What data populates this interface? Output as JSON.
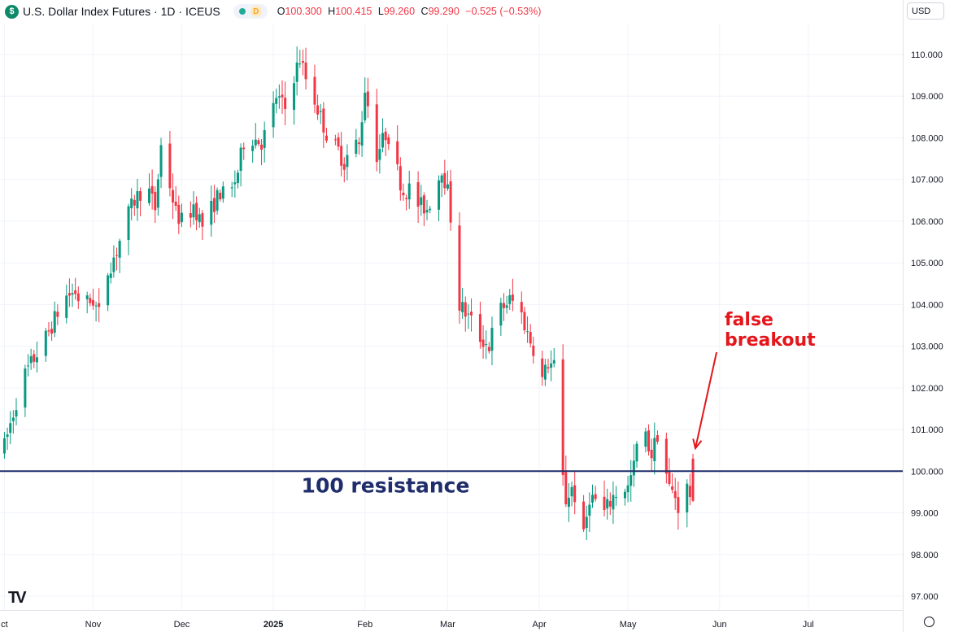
{
  "header": {
    "logo_letter": "$",
    "title": "U.S. Dollar Index Futures · 1D · ICEUS",
    "d_badge": "D",
    "ohlc": [
      {
        "k": "O",
        "v": "100.300"
      },
      {
        "k": "H",
        "v": "100.415"
      },
      {
        "k": "L",
        "v": "99.260"
      },
      {
        "k": "C",
        "v": "99.290"
      },
      {
        "k": "",
        "v": "−0.525 (−0.53%)"
      }
    ]
  },
  "currency_button": {
    "label": "USD",
    "icon": "chevron-down-icon"
  },
  "tv_logo": "TV",
  "colors": {
    "up": "#089981",
    "down": "#f23645",
    "resistance": "#1f2d6b",
    "annotation": "#e3161b",
    "grid": "#f0f3fa"
  },
  "chart_data": {
    "type": "candlestick",
    "ylim": [
      96.8,
      110.6
    ],
    "y_ticks": [
      "97.000",
      "98.000",
      "99.000",
      "100.000",
      "101.000",
      "102.000",
      "103.000",
      "104.000",
      "105.000",
      "106.000",
      "107.000",
      "108.000",
      "109.000",
      "110.000"
    ],
    "y_tick_values": [
      97,
      98,
      99,
      100,
      101,
      102,
      103,
      104,
      105,
      106,
      107,
      108,
      109,
      110
    ],
    "x_labels": [
      {
        "label": "ct",
        "day": 0,
        "bold": false
      },
      {
        "label": "Nov",
        "day": 30,
        "bold": false
      },
      {
        "label": "Dec",
        "day": 60,
        "bold": false
      },
      {
        "label": "2025",
        "day": 91,
        "bold": true
      },
      {
        "label": "Feb",
        "day": 122,
        "bold": false
      },
      {
        "label": "Mar",
        "day": 150,
        "bold": false
      },
      {
        "label": "Apr",
        "day": 181,
        "bold": false
      },
      {
        "label": "May",
        "day": 211,
        "bold": false
      },
      {
        "label": "Jun",
        "day": 242,
        "bold": false
      },
      {
        "label": "Jul",
        "day": 272,
        "bold": false
      }
    ],
    "x_range_days": [
      -1.5,
      304
    ],
    "trend_points": [
      [
        0,
        100.6
      ],
      [
        3,
        101.4
      ],
      [
        6,
        102.2
      ],
      [
        10,
        102.7
      ],
      [
        14,
        103.2
      ],
      [
        18,
        103.8
      ],
      [
        21,
        104.2
      ],
      [
        24,
        104.3
      ],
      [
        26,
        104.0
      ],
      [
        30,
        104.1
      ],
      [
        33,
        103.6
      ],
      [
        35,
        104.8
      ],
      [
        38,
        105.3
      ],
      [
        41,
        106.0
      ],
      [
        44,
        106.5
      ],
      [
        48,
        106.9
      ],
      [
        51,
        106.3
      ],
      [
        53,
        107.8
      ],
      [
        55,
        107.2
      ],
      [
        58,
        106.2
      ],
      [
        61,
        105.9
      ],
      [
        64,
        106.4
      ],
      [
        67,
        105.9
      ],
      [
        70,
        106.3
      ],
      [
        73,
        106.7
      ],
      [
        76,
        106.5
      ],
      [
        79,
        107.2
      ],
      [
        81,
        107.9
      ],
      [
        84,
        108.0
      ],
      [
        87,
        107.9
      ],
      [
        90,
        108.4
      ],
      [
        92,
        109.0
      ],
      [
        95,
        108.7
      ],
      [
        98,
        109.5
      ],
      [
        100,
        109.9
      ],
      [
        103,
        109.2
      ],
      [
        105,
        108.9
      ],
      [
        108,
        108.3
      ],
      [
        110,
        107.9
      ],
      [
        113,
        107.7
      ],
      [
        115,
        107.4
      ],
      [
        118,
        107.9
      ],
      [
        120,
        107.8
      ],
      [
        122,
        109.2
      ],
      [
        124,
        108.4
      ],
      [
        126,
        107.6
      ],
      [
        129,
        108.1
      ],
      [
        131,
        108.0
      ],
      [
        133,
        107.2
      ],
      [
        135,
        106.7
      ],
      [
        138,
        106.8
      ],
      [
        140,
        106.4
      ],
      [
        143,
        106.3
      ],
      [
        146,
        106.8
      ],
      [
        148,
        107.3
      ],
      [
        150,
        106.7
      ],
      [
        152,
        105.5
      ],
      [
        154,
        104.0
      ],
      [
        156,
        103.8
      ],
      [
        158,
        103.6
      ],
      [
        161,
        103.2
      ],
      [
        164,
        103.0
      ],
      [
        166,
        103.6
      ],
      [
        168,
        103.9
      ],
      [
        171,
        104.1
      ],
      [
        174,
        104.0
      ],
      [
        177,
        103.3
      ],
      [
        180,
        102.8
      ],
      [
        182,
        102.2
      ],
      [
        184,
        102.6
      ],
      [
        186,
        102.5
      ],
      [
        188,
        100.3
      ],
      [
        190,
        99.3
      ],
      [
        192,
        99.6
      ],
      [
        194,
        99.2
      ],
      [
        196,
        98.4
      ],
      [
        198,
        99.4
      ],
      [
        200,
        99.3
      ],
      [
        203,
        99.0
      ],
      [
        206,
        99.4
      ],
      [
        209,
        99.6
      ],
      [
        211,
        99.6
      ],
      [
        213,
        100.1
      ],
      [
        215,
        101.1
      ],
      [
        217,
        100.8
      ],
      [
        219,
        100.4
      ],
      [
        221,
        100.9
      ],
      [
        223,
        100.3
      ],
      [
        225,
        99.6
      ],
      [
        227,
        99.4
      ],
      [
        229,
        98.9
      ],
      [
        231,
        99.6
      ],
      [
        233,
        99.3
      ]
    ],
    "resistance": {
      "value": 100.0,
      "label": "100 resistance"
    },
    "annotation": {
      "lines": [
        "false",
        "breakout"
      ],
      "arrow_from": [
        241,
        103.0
      ],
      "arrow_to": [
        233,
        100.55
      ]
    }
  }
}
